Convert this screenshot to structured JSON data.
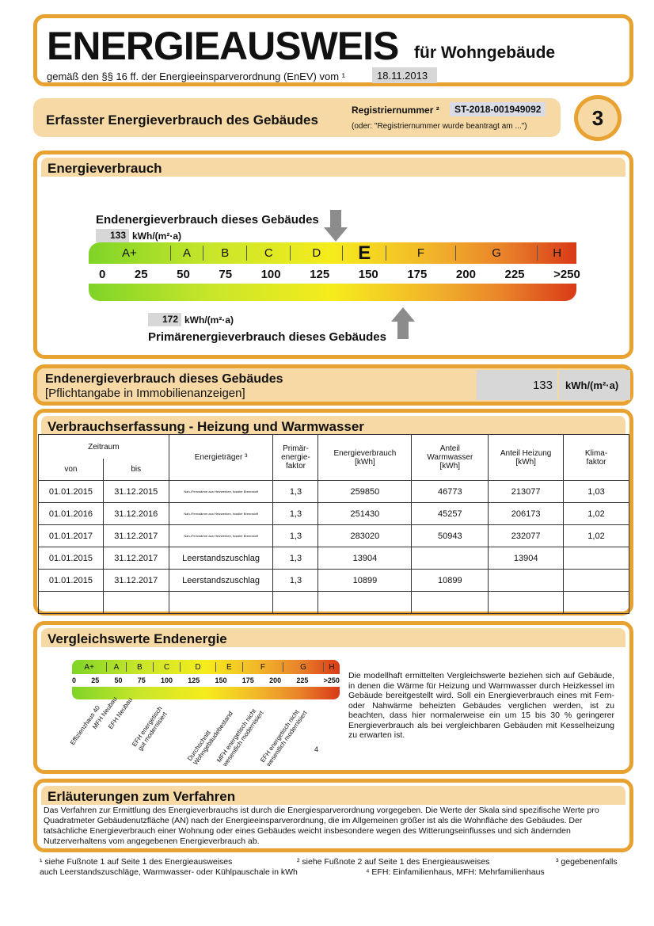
{
  "header": {
    "title": "ENERGIEAUSWEIS",
    "subtitle": "für Wohngebäude",
    "legal": "gemäß den §§ 16 ff. der Energieeinsparverordnung (EnEV) vom ¹",
    "date": "18.11.2013"
  },
  "page_bar": {
    "title": "Erfasster Energieverbrauch des Gebäudes",
    "reg_label": "Registriernummer ²",
    "reg_value": "ST-2018-001949092",
    "reg_note": "(oder: \"Registriernummer wurde beantragt am ...\")",
    "page_number": "3"
  },
  "energy": {
    "title": "Energieverbrauch",
    "end_label": "Endenergieverbrauch dieses Gebäudes",
    "end_value": "133",
    "unit": "kWh/(m²·a)",
    "primary_label": "Primärenergieverbrauch dieses Gebäudes",
    "primary_value": "172",
    "classes": [
      "A+",
      "A",
      "B",
      "C",
      "D",
      "E",
      "F",
      "G",
      "H"
    ],
    "active_class": "E",
    "ticks": [
      "0",
      "25",
      "50",
      "75",
      "100",
      "125",
      "150",
      "175",
      "200",
      "225",
      ">250"
    ]
  },
  "summary": {
    "title": "Endenergieverbrauch dieses Gebäudes",
    "note": "[Pflichtangabe in Immobilienanzeigen]",
    "value": "133",
    "unit": "kWh/(m²·a)"
  },
  "consumption": {
    "title": "Verbrauchserfassung - Heizung und Warmwasser",
    "headers": {
      "period": "Zeitraum",
      "from": "von",
      "to": "bis",
      "carrier": "Energieträger ³",
      "factor": "Primär-energie-faktor",
      "energy": "Energieverbrauch [kWh]",
      "water": "Anteil Warmwasser [kWh]",
      "heating": "Anteil Heizung [kWh]",
      "climate": "Klima-faktor"
    },
    "rows": [
      [
        "01.01.2015",
        "31.12.2015",
        "Nah-/Fernwärme aus Heizwerken, fossiler Brennstoff",
        "1,3",
        "259850",
        "46773",
        "213077",
        "1,03"
      ],
      [
        "01.01.2016",
        "31.12.2016",
        "Nah-/Fernwärme aus Heizwerken, fossiler Brennstoff",
        "1,3",
        "251430",
        "45257",
        "206173",
        "1,02"
      ],
      [
        "01.01.2017",
        "31.12.2017",
        "Nah-/Fernwärme aus Heizwerken, fossiler Brennstoff",
        "1,3",
        "283020",
        "50943",
        "232077",
        "1,02"
      ],
      [
        "01.01.2015",
        "31.12.2017",
        "Leerstandszuschlag",
        "1,3",
        "13904",
        "",
        "13904",
        ""
      ],
      [
        "01.01.2015",
        "31.12.2017",
        "Leerstandszuschlag",
        "1,3",
        "10899",
        "10899",
        "",
        ""
      ],
      [
        "",
        "",
        "",
        "",
        "",
        "",
        "",
        ""
      ]
    ]
  },
  "comparison": {
    "title": "Vergleichswerte Endenergie",
    "labels": [
      "Effizienzhaus 40",
      "MFH Neubau",
      "EFH Neubau",
      "EFH energetisch gut modernisiert",
      "Durchschnitt Wohngebäudebestand",
      "MFH energetisch nicht wesentlich modernisiert",
      "EFH energetisch nicht wesentlich modernisiert"
    ],
    "footnote_mark": "4",
    "text": "Die modellhaft ermittelten Vergleichswerte beziehen sich auf Gebäude, in denen die Wärme für Heizung und Warmwasser durch Heizkessel im Gebäude bereitgestellt wird. Soll ein Energieverbrauch eines mit Fern- oder Nahwärme beheizten Gebäudes verglichen werden, ist zu beachten, dass hier normalerweise ein um 15 bis 30 % geringerer Energieverbrauch als bei vergleichbaren Gebäuden mit Kesselheizung zu erwarten ist."
  },
  "explanation": {
    "title": "Erläuterungen zum Verfahren",
    "text": "Das Verfahren zur Ermittlung des Energieverbrauchs ist durch die Energiesparverordnung vorgegeben. Die Werte der Skala sind spezifische Werte pro Quadratmeter Gebäudenutzfläche (AN) nach der Energieeinsparverordnung, die im Allgemeinen größer ist als die Wohnfläche des Gebäudes. Der tatsächliche Energieverbrauch einer Wohnung oder eines Gebäudes weicht insbesondere wegen des Witterungseinflusses und sich ändernden Nutzerverhaltens vom angegebenen Energieverbrauch ab."
  },
  "footnotes": [
    "¹ siehe Fußnote 1 auf Seite 1 des Energieausweises",
    "² siehe Fußnote 2 auf Seite 1 des Energieausweises",
    "³ gegebenenfalls auch Leerstandszuschläge, Warmwasser- oder Kühlpauschale in kWh",
    "⁴ EFH: Einfamilienhaus, MFH: Mehrfamilienhaus"
  ],
  "colors": {
    "border": "#e8a232",
    "band": "#f7d9a6",
    "scale_start": "#7fd427",
    "scale_mid": "#f6ec1c",
    "scale_end": "#d93a17"
  }
}
